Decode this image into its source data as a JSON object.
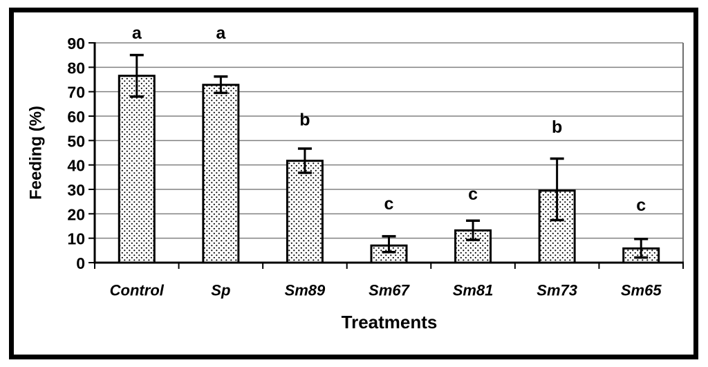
{
  "figure": {
    "background_color": "#ffffff",
    "frame_color": "#000000"
  },
  "chart_data": {
    "type": "bar",
    "title": "",
    "xlabel": "Treatments",
    "ylabel": "Feeding (%)",
    "ylim": [
      0,
      90
    ],
    "ytick_step": 10,
    "yticks": [
      0,
      10,
      20,
      30,
      40,
      50,
      60,
      70,
      80,
      90
    ],
    "grid": true,
    "legend": false,
    "categories": [
      "Control",
      "Sp",
      "Sm89",
      "Sm67",
      "Sm81",
      "Sm73",
      "Sm65"
    ],
    "values": [
      76.5,
      72.8,
      41.7,
      7.0,
      13.2,
      29.5,
      5.8
    ],
    "error_bars": {
      "high": [
        85.0,
        76.2,
        46.7,
        10.8,
        17.2,
        42.6,
        9.7
      ],
      "low": [
        68.0,
        69.5,
        36.8,
        4.3,
        9.3,
        17.4,
        2.1
      ]
    },
    "significance_letters": [
      {
        "category": "Control",
        "label": "a",
        "y": 94.0
      },
      {
        "category": "Sp",
        "label": "a",
        "y": 94.0
      },
      {
        "category": "Sm89",
        "label": "b",
        "y": 58.5
      },
      {
        "category": "Sm67",
        "label": "c",
        "y": 24.0
      },
      {
        "category": "Sm81",
        "label": "c",
        "y": 28.0
      },
      {
        "category": "Sm73",
        "label": "b",
        "y": 55.5
      },
      {
        "category": "Sm65",
        "label": "c",
        "y": 23.5
      }
    ],
    "bar_style": {
      "fill": "#ffffff",
      "pattern": "dots",
      "dot_color": "#000000",
      "border_color": "#000000"
    },
    "colors": {
      "gridline": "#808080",
      "plot_right_border": "#6e6e6e",
      "axis": "#000000",
      "text": "#000000"
    }
  }
}
